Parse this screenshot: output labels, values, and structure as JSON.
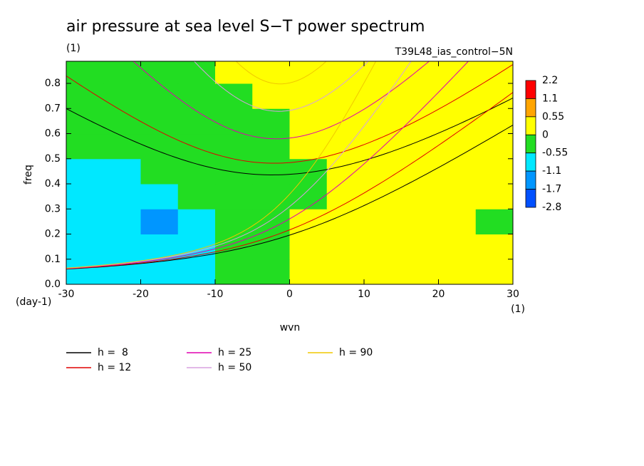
{
  "chart_data": {
    "type": "contour",
    "title": "air pressure at sea level S−T power spectrum",
    "subtitle": "(1)",
    "run_label": "T39L48_ias_control−5N",
    "xlabel": "wvn",
    "ylabel": "freq",
    "x_unit": "(1)",
    "y_unit": "(day-1)",
    "xlim": [
      -30,
      30
    ],
    "ylim": [
      0,
      0.888
    ],
    "xticks": [
      -30,
      -20,
      -10,
      0,
      10,
      20,
      30
    ],
    "yticks": [
      {
        "value": 0,
        "label": "0.0"
      },
      0.1,
      0.2,
      0.3,
      0.4,
      0.5,
      0.6,
      0.7,
      0.8
    ],
    "levels": [
      2.2,
      1.1,
      0.55,
      0,
      -0.55,
      -1.1,
      -1.7,
      -2.8
    ],
    "level_colors": [
      "#ff0000",
      "#ffa500",
      "#ffff00",
      "#22dd22",
      "#00e8ff",
      "#0096ff",
      "#0050ff"
    ],
    "xbins": [
      -30,
      -25,
      -20,
      -15,
      -10,
      -5,
      0,
      5,
      10,
      15,
      20,
      25,
      30
    ],
    "ybins": [
      0,
      0.1,
      0.2,
      0.3,
      0.4,
      0.5,
      0.6,
      0.7,
      0.8,
      0.888
    ],
    "z": [
      [
        -0.7,
        -0.7,
        -0.8,
        -0.7,
        -0.3,
        -0.2,
        0.3,
        0.3,
        0.3,
        0.2,
        0.2,
        0.1
      ],
      [
        -0.7,
        -0.8,
        -0.9,
        -0.7,
        -0.3,
        -0.2,
        0.3,
        0.3,
        0.3,
        0.2,
        0.2,
        0.1
      ],
      [
        -0.7,
        -0.9,
        -1.2,
        -0.8,
        -0.3,
        -0.2,
        0.2,
        0.3,
        0.3,
        0.3,
        0.1,
        -0.1
      ],
      [
        -0.6,
        -0.8,
        -0.8,
        -0.4,
        -0.3,
        -0.2,
        -0.1,
        0.2,
        0.3,
        0.2,
        0.2,
        0.1
      ],
      [
        -0.6,
        -0.7,
        -0.3,
        -0.3,
        -0.3,
        -0.2,
        -0.1,
        0.2,
        0.2,
        0.2,
        0.1,
        0.2
      ],
      [
        -0.2,
        -0.2,
        -0.2,
        -0.2,
        -0.2,
        -0.1,
        0.1,
        0.2,
        0.2,
        0.1,
        0.2,
        0.2
      ],
      [
        -0.2,
        -0.2,
        -0.2,
        -0.2,
        -0.1,
        -0.1,
        0.1,
        0.2,
        0.2,
        0.2,
        0.2,
        0.1
      ],
      [
        -0.2,
        -0.2,
        -0.2,
        -0.1,
        -0.1,
        0.1,
        0.2,
        0.3,
        0.2,
        0.2,
        0.2,
        0.1
      ],
      [
        -0.1,
        -0.2,
        -0.1,
        -0.1,
        0.1,
        0.1,
        0.2,
        0.2,
        0.2,
        0.2,
        0.2,
        0.1
      ]
    ],
    "series": [
      {
        "name": "h =  8",
        "h": 8,
        "color": "#000000"
      },
      {
        "name": "h = 12",
        "h": 12,
        "color": "#e00000"
      },
      {
        "name": "h = 25",
        "h": 25,
        "color": "#e000b0"
      },
      {
        "name": "h = 50",
        "h": 50,
        "color": "#d8a0e0"
      },
      {
        "name": "h = 90",
        "h": 90,
        "color": "#f0c800"
      }
    ]
  }
}
